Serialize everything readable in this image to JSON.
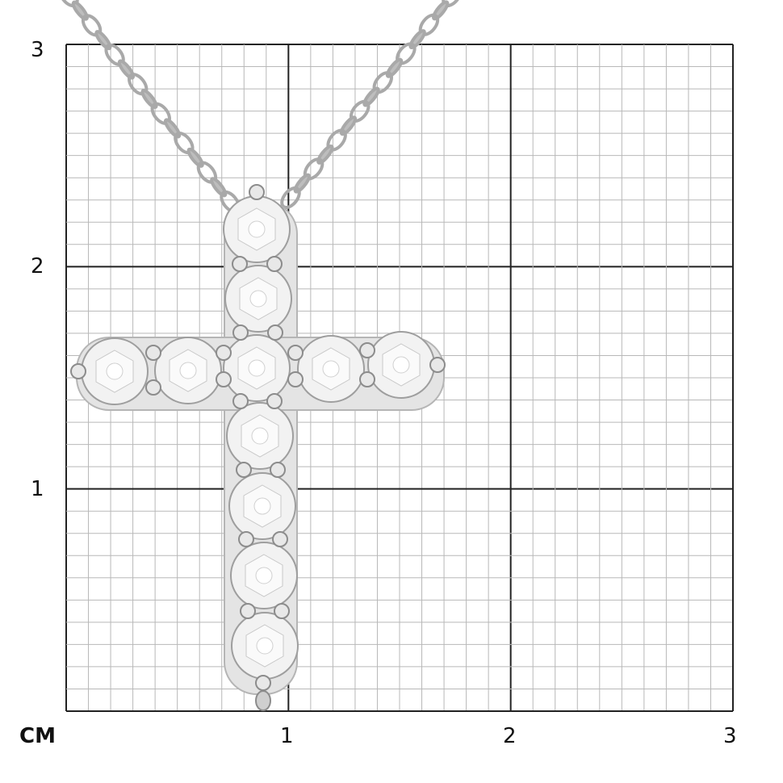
{
  "scale": {
    "unit_label": "CM",
    "y_labels": [
      "1",
      "2",
      "3"
    ],
    "x_labels": [
      "1",
      "2",
      "3"
    ],
    "range_cm": [
      0,
      3
    ],
    "minor_divisions_per_cm": 10
  },
  "colors": {
    "grid_major": "#222222",
    "grid_minor": "#b8b8b8",
    "metal": "#d9d9d9",
    "stone": "#f2f2f2"
  }
}
